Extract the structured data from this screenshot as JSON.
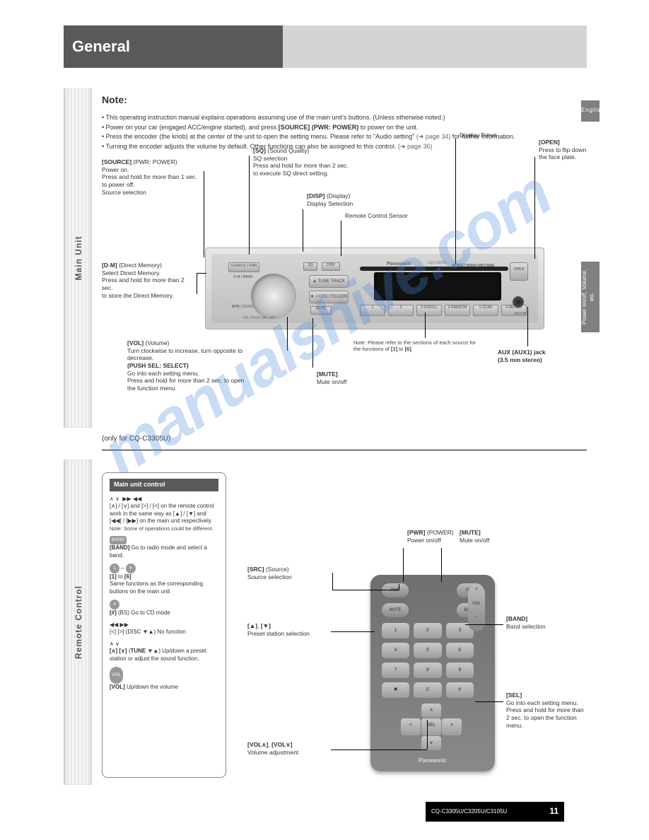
{
  "header": {
    "title": "General",
    "subtitle_note": ""
  },
  "side": {
    "lang": "English",
    "section_vertical": "Power on/off, Volume, etc."
  },
  "vbar": {
    "top": "Main Unit",
    "bottom": "Remote Control"
  },
  "page": {
    "title": "Note:",
    "intro_line1": "This operating instruction manual explains operations assuming use of the main unit's buttons. (Unless otherwise noted.)",
    "intro_line2a": "Power on your car (engaged ACC/engine started), and press ",
    "intro_line2b": "[SOURCE] (PWR: POWER)",
    "intro_line2c": " to power on the unit.",
    "intro_line3a": "Press the encoder (the knob) at the center of the unit to open the setting menu. Please refer to \"Audio setting\" ",
    "intro_line3_page": "(➜ page 34)",
    "intro_line3b": " for further information.",
    "intro_line4a": "Turning the encoder adjusts the volume by default. Other functions can also be assigned to this control. ",
    "intro_line4_page": "(➜ page 36)"
  },
  "stereo": {
    "brand": "Panasonic",
    "model": "CQ-C3305U",
    "mp3wma": "MOSFET 50Wx4 | MP3 WMA",
    "open": "OPEN",
    "src": "SOURCE | PWR",
    "band": "D·M / BAND",
    "apm": "APM / CLOCK",
    "sq": "SQ",
    "disp": "DISP",
    "tune_up": "▲  TUNE TRACK",
    "tune_dn": "▼  √ DISC FOLDER",
    "mute": "MUTE",
    "vol": "VOL   PUSH SEL  SET",
    "presets": [
      "1",
      "2",
      "3   SCROLL",
      "4   RANDOM",
      "5   SCAN",
      "6   REPEAT"
    ],
    "aux": "AUX IN"
  },
  "labels_top": {
    "src_power": "<b>[SOURCE]</b> (PWR: POWER)<br>Power on.<br>Press and hold for more than 1 sec. to power off.<br>Source selection",
    "sq": "<b>[SQ]</b> (Sound Quality)<br>SQ selection<br>Press and hold for more than 2 sec.<br>to execute SQ direct setting.",
    "disp": "<b>[DISP]</b> (Display)<br>Display Selection",
    "display_panel": "Display Panel",
    "open": "<b>[OPEN]</b><br>Press to flip down the face plate.",
    "dm": "<b>[D·M]</b> (Direct Memory)<br>Select Direct Memory.<br>Press and hold for more than 2 sec.<br>to store the Direct Memory.",
    "sensor": "Remote Control Sensor",
    "volsel": "<b>[VOL]</b> (Volume)<br>Turn clockwise to increase, turn opposite to<br>decrease.<br><b>(PUSH SEL: SELECT)</b><br>Go into each setting menu.<br>Press and hold for more than 2 sec. to open<br>the function menu.",
    "mute": "<b>[MUTE]</b><br>Mute on/off",
    "aux": "<b>AUX (AUX1) jack</b><br><b>(3.5 mm stereo)</b>"
  },
  "section2": {
    "heading": "(only for CQ-C3305U)"
  },
  "remote_card": {
    "title": "Main unit control",
    "r1": "[∧] / [∨] and [>] / [<] on the remote control work in the same way as [▲] / [▼] and [◀◀] / [▶▶] on the main unit respectively.",
    "r1_note": "Note: Some of operations could be different.",
    "band": "<b>[BAND]</b> Go to radio mode and select a band.",
    "numbers": "<b>[1]</b> to <b>[6]</b><br>Same functions as the corresponding buttons on the main unit",
    "bs": "<b>[#]</b> (BS) Go to CD mode",
    "disc": "[&lt;] [&gt;] (DISC ▼▲) No function",
    "tune_a": "<b>[∧] [∨]</b> (<b>TUNE ▼▲</b>) Up/down a preset station or adjust the sound function.",
    "vol": "<b>[VOL]</b> Up/down the volume"
  },
  "labels_remote": {
    "src": "<b>[SRC]</b> (Source)<br>Source selection",
    "pwr": "<b>[PWR]</b> (POWER)<br>Power on/off",
    "mute": "<b>[MUTE]</b><br>Mute on/off",
    "vol_up": "<b>[▲]</b>, <b>[▼]</b><br>Preset station selection",
    "sel": "<b>[SEL]</b><br>Go into each setting menu.<br>Press and hold for more than<br>2 sec. to open the function<br>menu.",
    "band": "<b>[BAND]</b><br>Band selection"
  },
  "remote": {
    "pwr": "PWR",
    "src": "SRC",
    "mute": "MUTE",
    "band": "BAND",
    "vol": "VOL",
    "k1": "1",
    "k2": "2",
    "k3": "3",
    "k4": "4",
    "k5": "5",
    "k6": "6",
    "k7": "7",
    "k8": "8",
    "k9": "9",
    "k0": "0",
    "ks": "✱",
    "kh": "#",
    "up": "∧",
    "dn": "∨",
    "lf": "<",
    "rt": ">",
    "sel": "SEL",
    "brand": "Panasonic"
  },
  "footer": {
    "models": "CQ-C3305U/C3205U/C3105U",
    "page": "11"
  },
  "colors": {
    "header_dark": "#595959",
    "header_light": "#d4d4d4",
    "watermark": "rgba(80,140,220,0.30)"
  }
}
